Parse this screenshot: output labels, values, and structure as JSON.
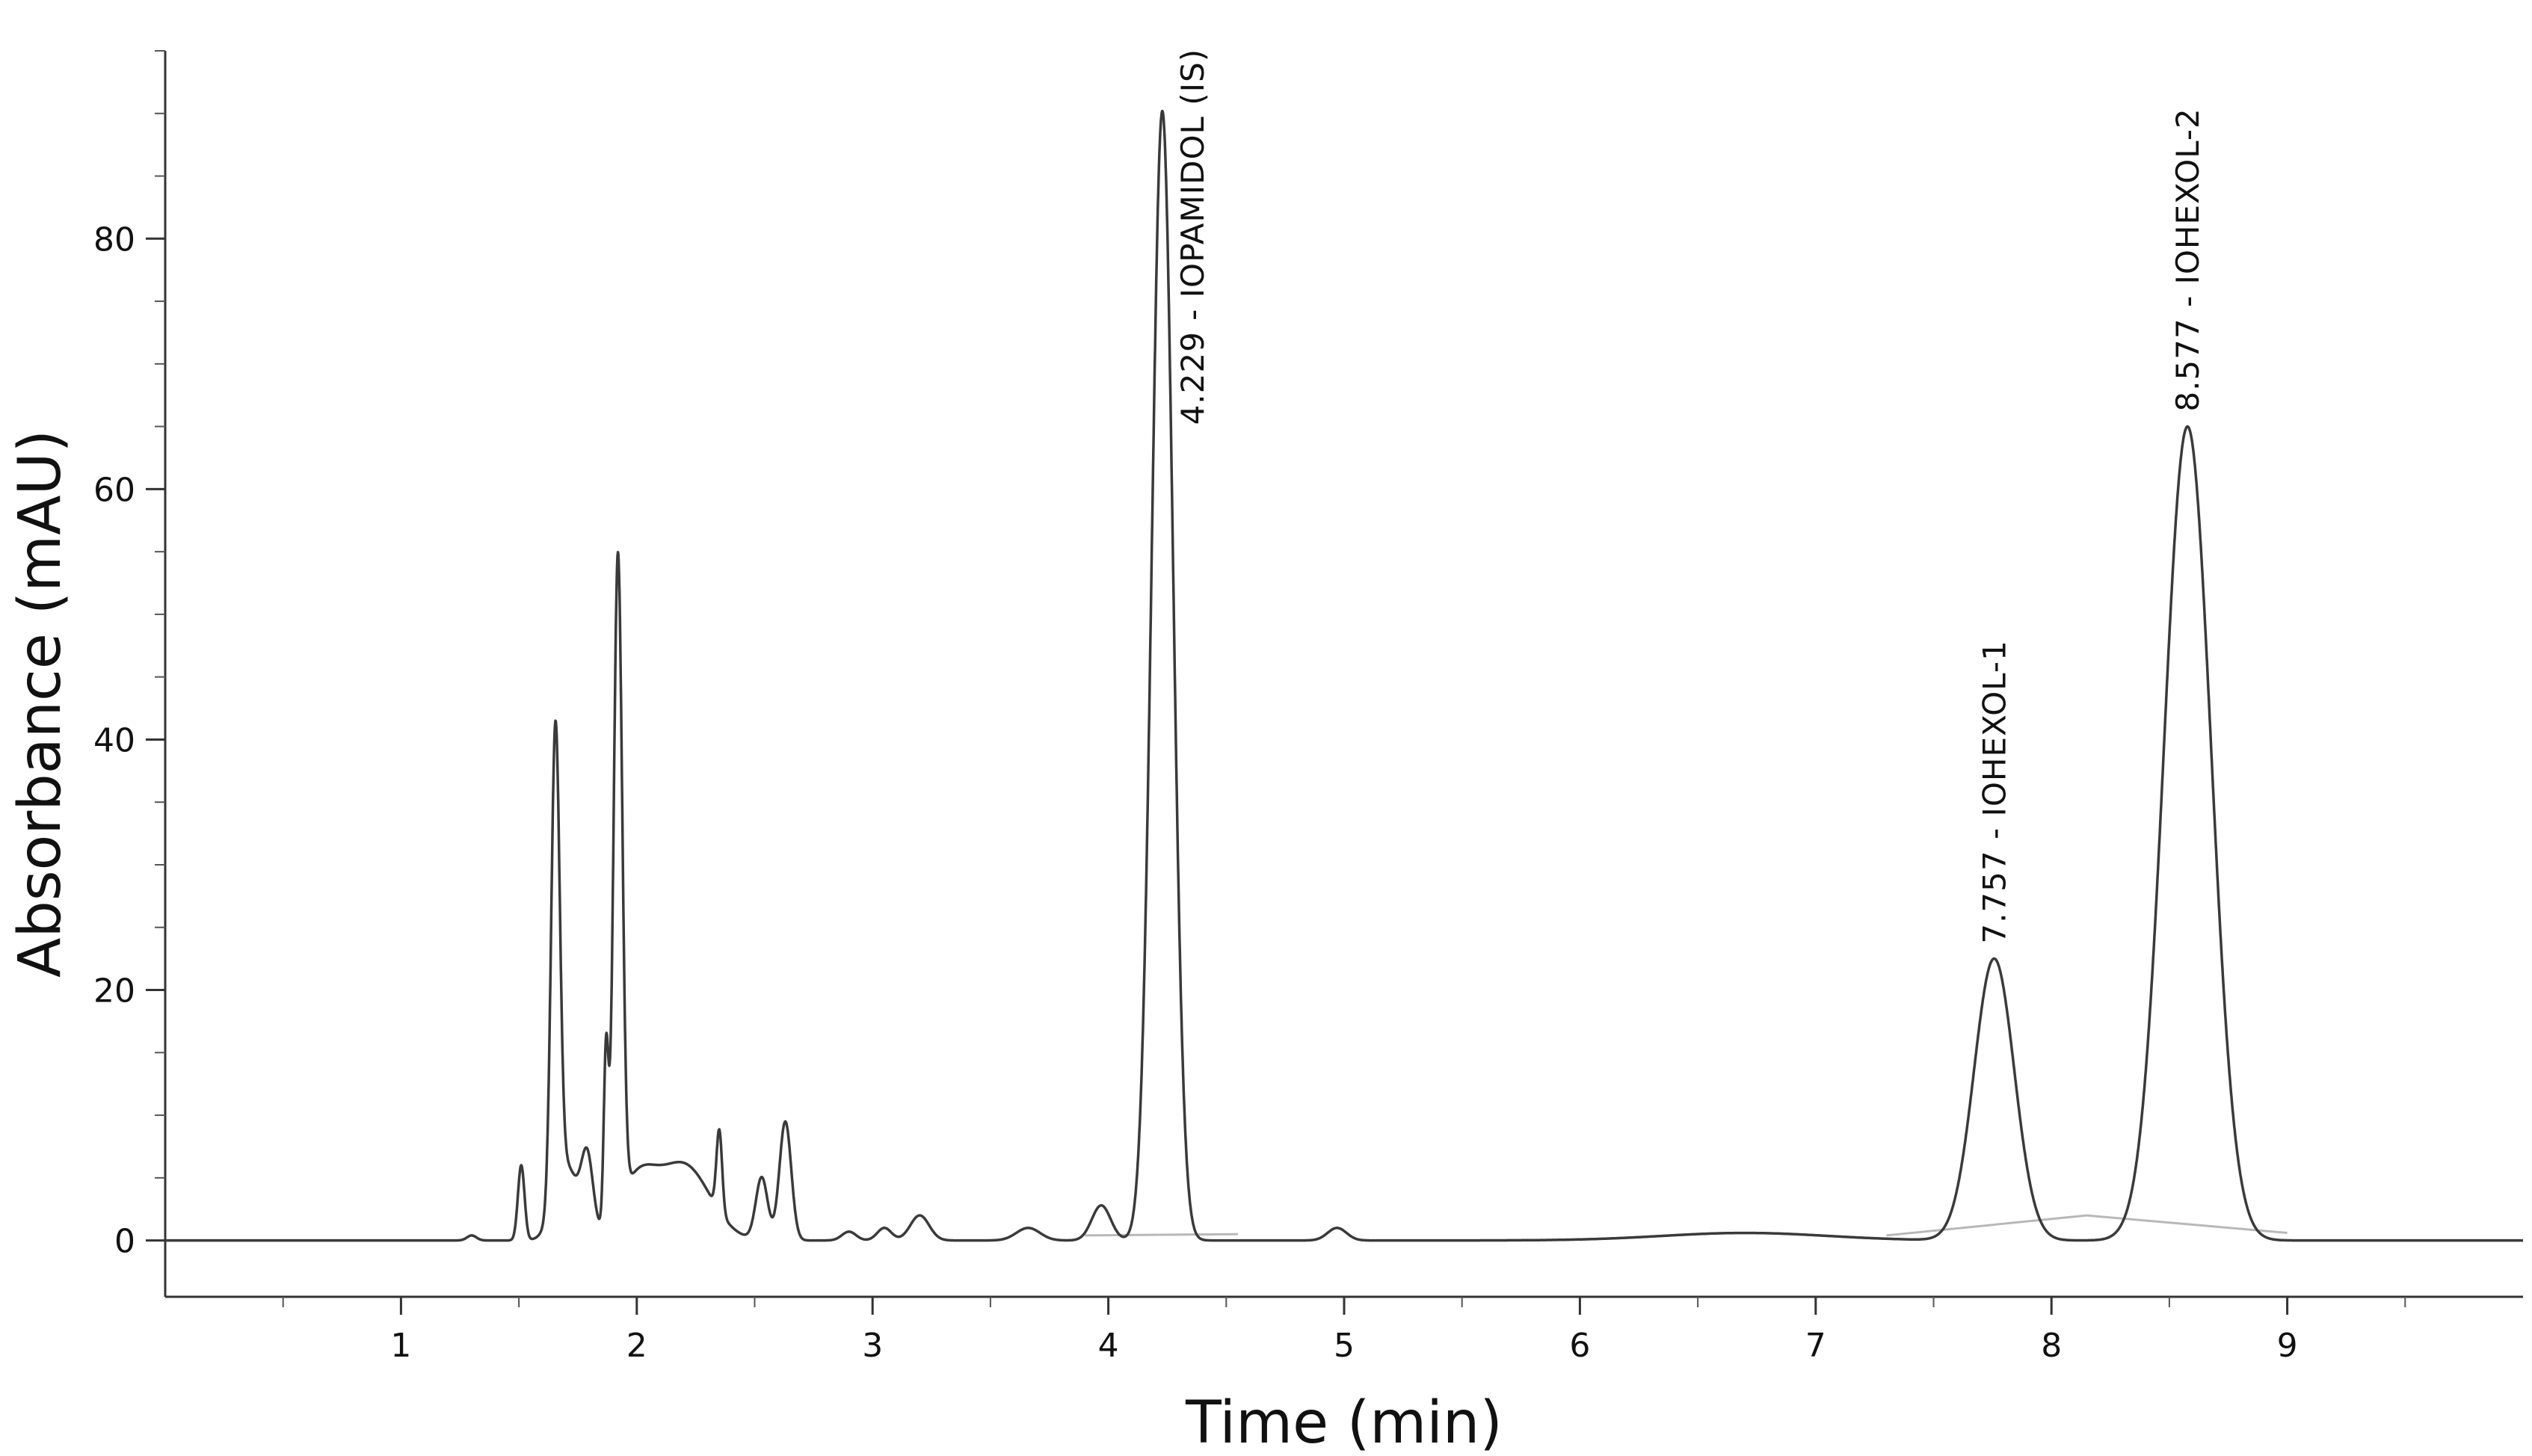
{
  "chart_data": {
    "type": "line",
    "xlabel": "Time (min)",
    "ylabel": "Absorbance (mAU)",
    "xlim": [
      0,
      10
    ],
    "ylim": [
      -4.5,
      95
    ],
    "x_ticks": [
      1,
      2,
      3,
      4,
      5,
      6,
      7,
      8,
      9
    ],
    "y_ticks": [
      0,
      20,
      40,
      60,
      80
    ],
    "grid": false,
    "series": [
      {
        "trace_color": "#3a3a3a",
        "baseline_color": "#b8b8b8",
        "peaks": [
          {
            "rt": 1.3,
            "height": 0.4,
            "width": 0.02
          },
          {
            "rt": 1.51,
            "height": 6.0,
            "width": 0.014
          },
          {
            "rt": 1.655,
            "height": 37.5,
            "width": 0.018
          },
          {
            "rt": 1.7,
            "height": 6.0,
            "width": 0.05
          },
          {
            "rt": 1.79,
            "height": 6.0,
            "width": 0.025
          },
          {
            "rt": 1.87,
            "height": 14.0,
            "width": 0.01
          },
          {
            "rt": 1.92,
            "height": 52.0,
            "width": 0.018
          },
          {
            "rt": 2.0,
            "height": 4.5,
            "width": 0.08
          },
          {
            "rt": 2.2,
            "height": 6.0,
            "width": 0.11
          },
          {
            "rt": 2.35,
            "height": 6.5,
            "width": 0.012
          },
          {
            "rt": 2.53,
            "height": 5.0,
            "width": 0.025
          },
          {
            "rt": 2.63,
            "height": 9.5,
            "width": 0.025
          },
          {
            "rt": 2.9,
            "height": 0.7,
            "width": 0.03
          },
          {
            "rt": 3.05,
            "height": 1.0,
            "width": 0.03
          },
          {
            "rt": 3.2,
            "height": 2.0,
            "width": 0.04
          },
          {
            "rt": 3.66,
            "height": 1.0,
            "width": 0.05
          },
          {
            "rt": 3.97,
            "height": 2.8,
            "width": 0.04
          },
          {
            "rt": 4.229,
            "height": 90.2,
            "width": 0.045
          },
          {
            "rt": 4.97,
            "height": 1.0,
            "width": 0.04
          },
          {
            "rt": 6.7,
            "height": 0.6,
            "width": 0.35
          },
          {
            "rt": 7.757,
            "height": 22.5,
            "width": 0.085
          },
          {
            "rt": 8.577,
            "height": 65.0,
            "width": 0.1
          }
        ],
        "integration_baselines": [
          {
            "from": 3.9,
            "to": 4.55,
            "y_from": 0.4,
            "y_to": 0.5
          },
          {
            "from": 7.3,
            "to": 8.15,
            "y_from": 0.4,
            "y_to": 2.0
          },
          {
            "from": 8.15,
            "to": 9.0,
            "y_from": 2.0,
            "y_to": 0.6
          }
        ]
      }
    ],
    "annotations": [
      {
        "text": "4.229 - IOPAMIDOL (IS)",
        "x": 4.229,
        "y": 90.2
      },
      {
        "text": "7.757 - IOHEXOL-1",
        "x": 7.757,
        "y": 22.5
      },
      {
        "text": "8.577 - IOHEXOL-2",
        "x": 8.577,
        "y": 65.0
      }
    ]
  }
}
